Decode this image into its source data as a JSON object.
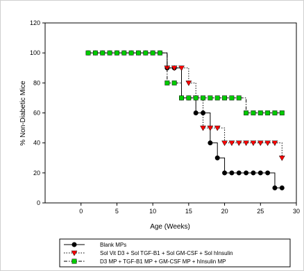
{
  "chart_data": {
    "type": "line",
    "title": "",
    "xlabel": "Age (Weeks)",
    "ylabel": "% Non-Diabetic Mice",
    "xlim": [
      -5,
      30
    ],
    "ylim": [
      0,
      120
    ],
    "xticks": [
      0,
      5,
      10,
      15,
      20,
      25,
      30
    ],
    "yticks": [
      0,
      20,
      40,
      60,
      80,
      100,
      120
    ],
    "xtick_labels": [
      "0",
      "5",
      "10",
      "15",
      "20",
      "25",
      "30"
    ],
    "ytick_labels": [
      "0",
      "20",
      "40",
      "60",
      "80",
      "100",
      "120"
    ],
    "grid": false,
    "legend_position": "bottom-center",
    "series": [
      {
        "name": "Blank MPs",
        "color": "#000000",
        "marker": "circle",
        "line_style": "solid",
        "step": true,
        "x": [
          1,
          2,
          3,
          4,
          5,
          6,
          7,
          8,
          9,
          10,
          11,
          12,
          13,
          14,
          15,
          16,
          17,
          18,
          19,
          20,
          21,
          22,
          23,
          24,
          25,
          26,
          27,
          28
        ],
        "y": [
          100,
          100,
          100,
          100,
          100,
          100,
          100,
          100,
          100,
          100,
          100,
          90,
          90,
          70,
          70,
          60,
          60,
          40,
          30,
          20,
          20,
          20,
          20,
          20,
          20,
          20,
          10,
          10
        ]
      },
      {
        "name": "Sol Vit D3 + Sol TGF-B1 + Sol GM-CSF + Sol hInsulin",
        "color": "#ff0000",
        "marker": "triangle-down",
        "line_style": "dotted",
        "step": true,
        "x": [
          12,
          13,
          14,
          15,
          16,
          17,
          18,
          19,
          20,
          21,
          22,
          23,
          24,
          25,
          26,
          27,
          28
        ],
        "y": [
          90,
          90,
          90,
          80,
          70,
          50,
          50,
          50,
          40,
          40,
          40,
          40,
          40,
          40,
          40,
          40,
          30
        ]
      },
      {
        "name": "D3 MP + TGF-B1 MP + GM-CSF MP + hInsulin MP",
        "color": "#00cc00",
        "marker": "square",
        "line_style": "dash-dot",
        "step": true,
        "x": [
          1,
          2,
          3,
          4,
          5,
          6,
          7,
          8,
          9,
          10,
          11,
          12,
          13,
          14,
          15,
          16,
          17,
          18,
          19,
          20,
          21,
          22,
          23,
          24,
          25,
          26,
          27,
          28
        ],
        "y": [
          100,
          100,
          100,
          100,
          100,
          100,
          100,
          100,
          100,
          100,
          100,
          80,
          80,
          70,
          70,
          70,
          70,
          70,
          70,
          70,
          70,
          70,
          60,
          60,
          60,
          60,
          60,
          60
        ]
      }
    ]
  }
}
